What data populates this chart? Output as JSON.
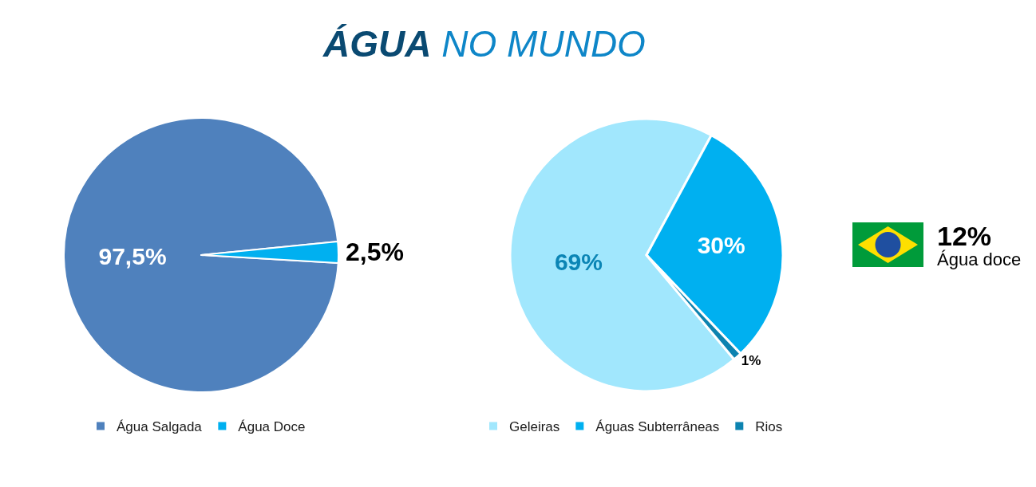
{
  "chart_data": [
    {
      "type": "pie",
      "title": "ÁGUA NO MUNDO",
      "categories": [
        "Água Salgada",
        "Água Doce"
      ],
      "values": [
        97.5,
        2.5
      ],
      "colors": [
        "#4f81bd",
        "#00b0f0"
      ],
      "value_labels": [
        "97,5%",
        "2,5%"
      ],
      "legend": "bottom"
    },
    {
      "type": "pie",
      "categories": [
        "Geleiras",
        "Águas Subterrâneas",
        "Rios"
      ],
      "values": [
        69,
        30,
        1
      ],
      "colors": [
        "#a1e7fd",
        "#00b0f0",
        "#0d83b0"
      ],
      "value_labels": [
        "69%",
        "30%",
        "1%"
      ],
      "legend": "bottom"
    },
    {
      "type": "other",
      "title": "12%",
      "subtitle": "Água doce"
    }
  ]
}
